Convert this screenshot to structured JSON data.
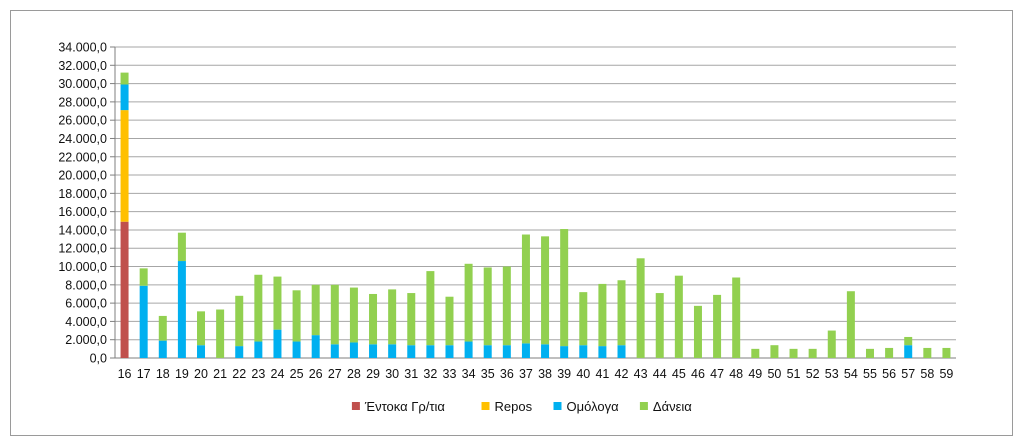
{
  "chart_data": {
    "type": "bar",
    "stacked": true,
    "title": "",
    "xlabel": "",
    "ylabel": "",
    "ylim": [
      0,
      34000
    ],
    "y_ticks": [
      "0,0",
      "2.000,0",
      "4.000,0",
      "6.000,0",
      "8.000,0",
      "10.000,0",
      "12.000,0",
      "14.000,0",
      "16.000,0",
      "18.000,0",
      "20.000,0",
      "22.000,0",
      "24.000,0",
      "26.000,0",
      "28.000,0",
      "30.000,0",
      "32.000,0",
      "34.000,0"
    ],
    "grid": true,
    "legend_position": "bottom",
    "categories": [
      "16",
      "17",
      "18",
      "19",
      "20",
      "21",
      "22",
      "23",
      "24",
      "25",
      "26",
      "27",
      "28",
      "29",
      "30",
      "31",
      "32",
      "33",
      "34",
      "35",
      "36",
      "37",
      "38",
      "39",
      "40",
      "41",
      "42",
      "43",
      "44",
      "45",
      "46",
      "47",
      "48",
      "49",
      "50",
      "51",
      "52",
      "53",
      "54",
      "55",
      "56",
      "57",
      "58",
      "59"
    ],
    "series": [
      {
        "name": "Έντοκα Γρ/τια",
        "color": "#c0504d",
        "values": [
          14900,
          0,
          0,
          0,
          0,
          0,
          0,
          0,
          0,
          0,
          0,
          0,
          0,
          0,
          0,
          0,
          0,
          0,
          0,
          0,
          0,
          0,
          0,
          0,
          0,
          0,
          0,
          0,
          0,
          0,
          0,
          0,
          0,
          0,
          0,
          0,
          0,
          0,
          0,
          0,
          0,
          0,
          0,
          0
        ]
      },
      {
        "name": "Repos",
        "color": "#ffc000",
        "values": [
          12200,
          0,
          0,
          0,
          0,
          0,
          0,
          0,
          0,
          0,
          0,
          0,
          0,
          0,
          0,
          0,
          0,
          0,
          0,
          0,
          0,
          0,
          0,
          0,
          0,
          0,
          0,
          0,
          0,
          0,
          0,
          0,
          0,
          0,
          0,
          0,
          0,
          0,
          0,
          0,
          0,
          0,
          0,
          0
        ]
      },
      {
        "name": "Ομόλογα",
        "color": "#00b0f0",
        "values": [
          2800,
          7900,
          1900,
          10600,
          1400,
          0,
          1300,
          1800,
          3100,
          1800,
          2500,
          1500,
          1700,
          1500,
          1500,
          1400,
          1400,
          1400,
          1800,
          1400,
          1400,
          1600,
          1500,
          1300,
          1400,
          1300,
          1400,
          0,
          0,
          0,
          0,
          0,
          0,
          0,
          0,
          0,
          0,
          0,
          0,
          0,
          0,
          1400,
          0,
          0
        ]
      },
      {
        "name": "Δάνεια",
        "color": "#92d050",
        "values": [
          1300,
          1900,
          2700,
          3100,
          3700,
          5300,
          5500,
          7300,
          5800,
          5600,
          5500,
          6500,
          6000,
          5500,
          6000,
          5700,
          8100,
          5300,
          8500,
          8500,
          8600,
          11900,
          11800,
          12800,
          5800,
          6800,
          7100,
          10900,
          7100,
          9000,
          5700,
          6900,
          8800,
          1000,
          1400,
          1000,
          1000,
          3000,
          7300,
          1000,
          1100,
          900,
          1100,
          1100
        ]
      }
    ]
  }
}
